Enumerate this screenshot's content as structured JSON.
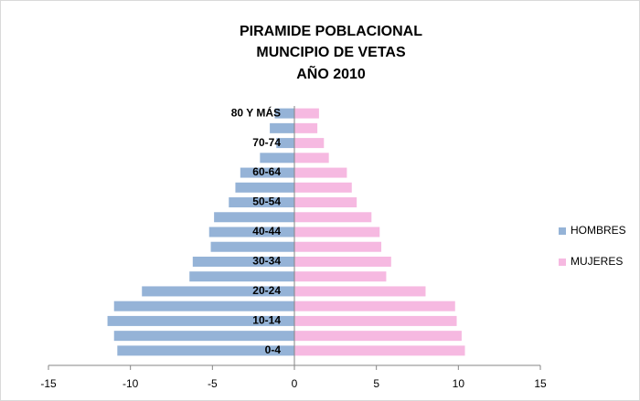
{
  "chart_data": {
    "type": "bar",
    "orientation": "horizontal",
    "title": [
      "PIRAMIDE POBLACIONAL",
      "MUNCIPIO DE VETAS",
      "AÑO 2010"
    ],
    "categories": [
      "0-4",
      null,
      "10-14",
      null,
      "20-24",
      null,
      "30-34",
      null,
      "40-44",
      null,
      "50-54",
      null,
      "60-64",
      null,
      "70-74",
      null,
      "80 Y MÁS"
    ],
    "series": [
      {
        "name": "HOMBRES",
        "color": "#95b3d7",
        "values": [
          -10.8,
          -11.0,
          -11.4,
          -11.0,
          -9.3,
          -6.4,
          -6.2,
          -5.1,
          -5.2,
          -4.9,
          -4.0,
          -3.6,
          -3.3,
          -2.1,
          -1.1,
          -1.5,
          -1.2
        ]
      },
      {
        "name": "MUJERES",
        "color": "#f6b9e1",
        "values": [
          10.4,
          10.2,
          9.9,
          9.8,
          8.0,
          5.6,
          5.9,
          5.3,
          5.2,
          4.7,
          3.8,
          3.5,
          3.2,
          2.1,
          1.8,
          1.4,
          1.5
        ]
      }
    ],
    "xlim": [
      -15,
      15
    ],
    "xticks": [
      -15,
      -10,
      -5,
      0,
      5,
      10,
      15
    ],
    "legend": "right"
  }
}
